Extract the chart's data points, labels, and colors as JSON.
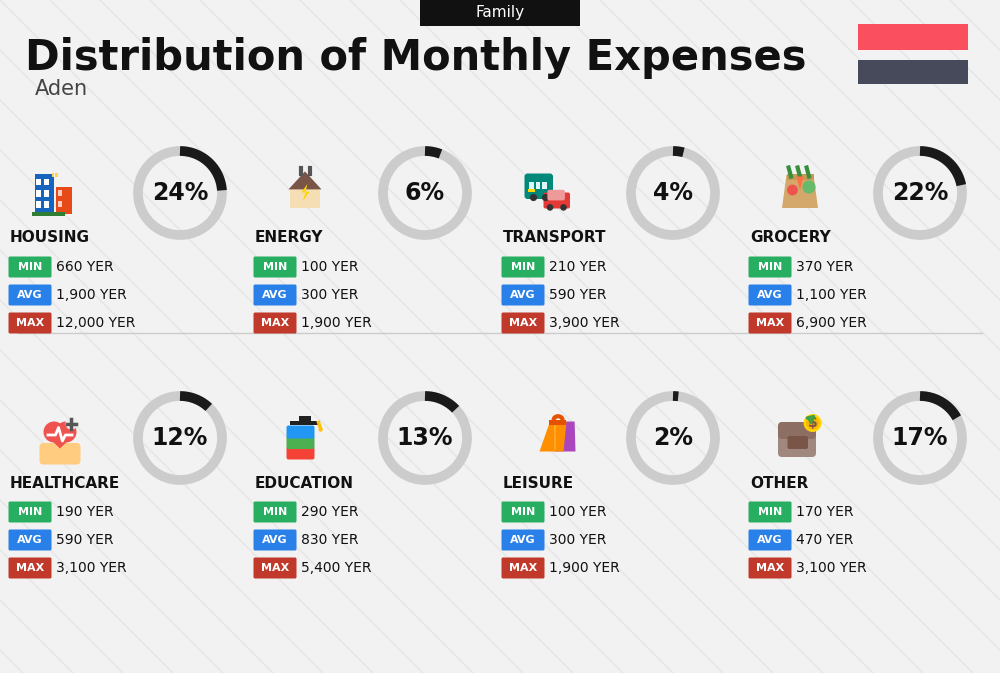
{
  "title": "Distribution of Monthly Expenses",
  "subtitle": "Aden",
  "tab_label": "Family",
  "bg_color": "#f2f2f2",
  "title_color": "#111111",
  "subtitle_color": "#444444",
  "tab_bg": "#111111",
  "tab_text": "#ffffff",
  "legend_colors": [
    "#f94f5e",
    "#464a5a"
  ],
  "categories": [
    {
      "name": "HOUSING",
      "pct": 24,
      "min_val": "660 YER",
      "avg_val": "1,900 YER",
      "max_val": "12,000 YER",
      "row": 0,
      "col": 0
    },
    {
      "name": "ENERGY",
      "pct": 6,
      "min_val": "100 YER",
      "avg_val": "300 YER",
      "max_val": "1,900 YER",
      "row": 0,
      "col": 1
    },
    {
      "name": "TRANSPORT",
      "pct": 4,
      "min_val": "210 YER",
      "avg_val": "590 YER",
      "max_val": "3,900 YER",
      "row": 0,
      "col": 2
    },
    {
      "name": "GROCERY",
      "pct": 22,
      "min_val": "370 YER",
      "avg_val": "1,100 YER",
      "max_val": "6,900 YER",
      "row": 0,
      "col": 3
    },
    {
      "name": "HEALTHCARE",
      "pct": 12,
      "min_val": "190 YER",
      "avg_val": "590 YER",
      "max_val": "3,100 YER",
      "row": 1,
      "col": 0
    },
    {
      "name": "EDUCATION",
      "pct": 13,
      "min_val": "290 YER",
      "avg_val": "830 YER",
      "max_val": "5,400 YER",
      "row": 1,
      "col": 1
    },
    {
      "name": "LEISURE",
      "pct": 2,
      "min_val": "100 YER",
      "avg_val": "300 YER",
      "max_val": "1,900 YER",
      "row": 1,
      "col": 2
    },
    {
      "name": "OTHER",
      "pct": 17,
      "min_val": "170 YER",
      "avg_val": "470 YER",
      "max_val": "3,100 YER",
      "row": 1,
      "col": 3
    }
  ],
  "min_color": "#27ae60",
  "avg_color": "#2980e8",
  "max_color": "#c0392b",
  "value_text_color": "#111111",
  "circle_color_dark": "#1a1a1a",
  "circle_color_light": "#cccccc",
  "pct_fontsize": 17,
  "cat_fontsize": 11,
  "val_fontsize": 10
}
